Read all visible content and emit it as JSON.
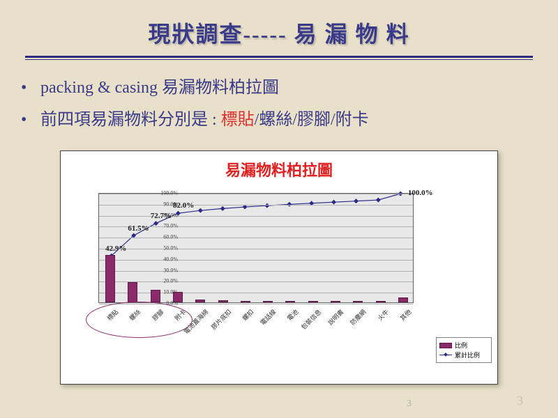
{
  "slide": {
    "title": "現狀調查----- 易 漏 物 料",
    "bullet1_prefix": "packing & casing ",
    "bullet1_rest": "易漏物料柏拉圖",
    "bullet2_prefix": "前四項易漏物料分別是 : ",
    "bullet2_hl": "標貼",
    "bullet2_rest": "/螺絲/膠腳/附卡",
    "page_num_a": "3",
    "page_num_b": "3",
    "background_color": "#e8e0c8",
    "title_color": "#3a3a8a"
  },
  "chart": {
    "type": "pareto",
    "title": "易漏物料柏拉圖",
    "title_color": "#e02020",
    "title_fontsize": 22,
    "plot_bg": "#e8e8e8",
    "grid_color": "#b0b0b0",
    "bar_color": "#8a2a6a",
    "line_color": "#2a2a8a",
    "ylim": [
      0,
      100
    ],
    "ytick_step": 10,
    "y_format_suffix": ".0%",
    "categories": [
      "標貼",
      "螺絲",
      "膠腳",
      "附卡",
      "電池蓋海綿",
      "膠片底扣",
      "螺扣",
      "電話線",
      "電池",
      "包裝信息",
      "說明書",
      "防塵網",
      "火牛",
      "其他"
    ],
    "bar_values_pct": [
      42.9,
      18.6,
      11.2,
      9.3,
      2.5,
      1.8,
      1.5,
      1.2,
      1.2,
      1.0,
      1.0,
      1.0,
      1.0,
      4.5
    ],
    "cum_values_pct": [
      42.9,
      61.5,
      72.7,
      82.0,
      84.5,
      86.3,
      87.8,
      89.0,
      90.2,
      91.2,
      92.2,
      93.2,
      94.2,
      100.0
    ],
    "annotations": [
      {
        "text": "42.9%",
        "idx": 0
      },
      {
        "text": "61.5%",
        "idx": 1
      },
      {
        "text": "72.7%",
        "idx": 2
      },
      {
        "text": "82.0%",
        "idx": 3
      },
      {
        "text": "100.0%",
        "idx": 13
      }
    ],
    "legend": {
      "bar": "比例",
      "line": "累計比例"
    },
    "ellipse_covers_first_n": 4
  }
}
